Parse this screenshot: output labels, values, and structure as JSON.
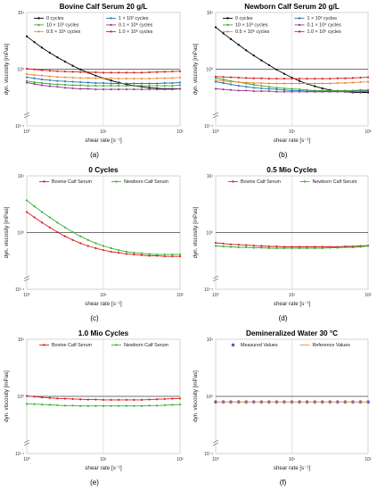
{
  "chart_data": [
    {
      "type": "line",
      "title": "Bovine Calf Serum 20 g/L",
      "xlabel": "shear rate [s⁻¹]",
      "ylabel": "dyn. viscosity [mPas]",
      "xscale": "log",
      "yscale": "log",
      "xlim": [
        1,
        100
      ],
      "ylim": [
        0.1,
        10
      ],
      "x_ticks": [
        "10⁰",
        "10¹",
        "10²"
      ],
      "y_ticks": [
        "10⁻¹",
        "10⁰",
        "10¹"
      ],
      "grid": true,
      "legend_position": "top",
      "panel_label": "(a)",
      "x": [
        1,
        1.26,
        1.58,
        2,
        2.51,
        3.16,
        3.98,
        5.01,
        6.31,
        7.94,
        10,
        12.6,
        15.8,
        20,
        25.1,
        31.6,
        39.8,
        50.1,
        63.1,
        79.4,
        100
      ],
      "series": [
        {
          "name": "0  cycles",
          "color": "#000000",
          "values": [
            3.8,
            3.0,
            2.4,
            1.95,
            1.62,
            1.36,
            1.15,
            0.99,
            0.87,
            0.77,
            0.69,
            0.63,
            0.58,
            0.54,
            0.51,
            0.49,
            0.47,
            0.46,
            0.45,
            0.45,
            0.45
          ]
        },
        {
          "name": "1 × 10²  cycles",
          "color": "#2e75b6",
          "values": [
            0.72,
            0.69,
            0.66,
            0.64,
            0.62,
            0.61,
            0.6,
            0.59,
            0.58,
            0.57,
            0.57,
            0.56,
            0.56,
            0.56,
            0.56,
            0.56,
            0.56,
            0.56,
            0.57,
            0.57,
            0.58
          ]
        },
        {
          "name": "10 × 10³  cycles",
          "color": "#3db035",
          "values": [
            0.62,
            0.59,
            0.57,
            0.55,
            0.54,
            0.53,
            0.52,
            0.52,
            0.51,
            0.51,
            0.51,
            0.51,
            0.51,
            0.51,
            0.51,
            0.51,
            0.51,
            0.51,
            0.51,
            0.51,
            0.52
          ]
        },
        {
          "name": "0.1 × 10⁶  cycles",
          "color": "#9b3a8e",
          "values": [
            0.58,
            0.55,
            0.52,
            0.5,
            0.49,
            0.47,
            0.46,
            0.45,
            0.45,
            0.44,
            0.44,
            0.44,
            0.44,
            0.44,
            0.44,
            0.44,
            0.44,
            0.44,
            0.44,
            0.44,
            0.45
          ]
        },
        {
          "name": "0.5 × 10⁶  cycles",
          "color": "#f08b3a",
          "values": [
            0.82,
            0.79,
            0.77,
            0.75,
            0.73,
            0.72,
            0.71,
            0.7,
            0.7,
            0.69,
            0.69,
            0.69,
            0.68,
            0.68,
            0.68,
            0.68,
            0.68,
            0.69,
            0.69,
            0.7,
            0.71
          ]
        },
        {
          "name": "1.0 × 10⁶  cycles",
          "color": "#d62020",
          "values": [
            1.02,
            0.99,
            0.96,
            0.94,
            0.92,
            0.91,
            0.9,
            0.89,
            0.88,
            0.88,
            0.87,
            0.87,
            0.87,
            0.87,
            0.87,
            0.87,
            0.88,
            0.89,
            0.9,
            0.91,
            0.92
          ]
        }
      ]
    },
    {
      "type": "line",
      "title": "Newborn Calf Serum 20 g/L",
      "xlabel": "shear rate [s⁻¹]",
      "ylabel": "dyn. viscosity [mPas]",
      "xscale": "log",
      "yscale": "log",
      "xlim": [
        1,
        100
      ],
      "ylim": [
        0.1,
        10
      ],
      "x_ticks": [
        "10⁰",
        "10¹",
        "10²"
      ],
      "y_ticks": [
        "10⁻¹",
        "10⁰",
        "10¹"
      ],
      "grid": true,
      "legend_position": "top",
      "panel_label": "(b)",
      "x": [
        1,
        1.26,
        1.58,
        2,
        2.51,
        3.16,
        3.98,
        5.01,
        6.31,
        7.94,
        10,
        12.6,
        15.8,
        20,
        25.1,
        31.6,
        39.8,
        50.1,
        63.1,
        79.4,
        100
      ],
      "series": [
        {
          "name": "0  cycles",
          "color": "#000000",
          "values": [
            5.5,
            4.3,
            3.4,
            2.7,
            2.15,
            1.75,
            1.43,
            1.18,
            0.98,
            0.83,
            0.71,
            0.62,
            0.55,
            0.5,
            0.46,
            0.43,
            0.41,
            0.4,
            0.39,
            0.39,
            0.39
          ]
        },
        {
          "name": "1 × 10²  cycles",
          "color": "#2e75b6",
          "values": [
            0.6,
            0.57,
            0.54,
            0.51,
            0.49,
            0.47,
            0.46,
            0.45,
            0.44,
            0.43,
            0.42,
            0.42,
            0.41,
            0.41,
            0.41,
            0.41,
            0.41,
            0.41,
            0.41,
            0.42,
            0.42
          ]
        },
        {
          "name": "10 × 10³  cycles",
          "color": "#3db035",
          "values": [
            0.7,
            0.66,
            0.62,
            0.59,
            0.56,
            0.53,
            0.51,
            0.49,
            0.47,
            0.46,
            0.45,
            0.44,
            0.43,
            0.42,
            0.42,
            0.42,
            0.42,
            0.42,
            0.42,
            0.43,
            0.43
          ]
        },
        {
          "name": "0.1 × 10⁶  cycles",
          "color": "#9b3a8e",
          "values": [
            0.45,
            0.44,
            0.43,
            0.42,
            0.42,
            0.41,
            0.41,
            0.41,
            0.4,
            0.4,
            0.4,
            0.4,
            0.4,
            0.4,
            0.4,
            0.4,
            0.4,
            0.4,
            0.4,
            0.4,
            0.41
          ]
        },
        {
          "name": "0.5 × 10⁶  cycles",
          "color": "#f08b3a",
          "values": [
            0.64,
            0.62,
            0.6,
            0.59,
            0.58,
            0.57,
            0.57,
            0.56,
            0.56,
            0.56,
            0.56,
            0.56,
            0.56,
            0.56,
            0.56,
            0.56,
            0.57,
            0.57,
            0.58,
            0.59,
            0.6
          ]
        },
        {
          "name": "1.0 × 10⁶  cycles",
          "color": "#d62020",
          "values": [
            0.74,
            0.73,
            0.72,
            0.71,
            0.7,
            0.69,
            0.69,
            0.68,
            0.68,
            0.68,
            0.68,
            0.68,
            0.68,
            0.68,
            0.68,
            0.68,
            0.69,
            0.69,
            0.7,
            0.71,
            0.72
          ]
        }
      ]
    },
    {
      "type": "line",
      "title": "0 Cycles",
      "xlabel": "shear rate [s⁻¹]",
      "ylabel": "dyn. viscosity [mPas]",
      "xscale": "log",
      "yscale": "log",
      "xlim": [
        1,
        100
      ],
      "ylim": [
        0.1,
        10
      ],
      "x_ticks": [
        "10⁰",
        "10¹",
        "10²"
      ],
      "y_ticks": [
        "10⁻¹",
        "10⁰",
        "10¹"
      ],
      "grid": true,
      "legend_position": "top",
      "panel_label": "(c)",
      "x": [
        1,
        1.26,
        1.58,
        2,
        2.51,
        3.16,
        3.98,
        5.01,
        6.31,
        7.94,
        10,
        12.6,
        15.8,
        20,
        25.1,
        31.6,
        39.8,
        50.1,
        63.1,
        79.4,
        100
      ],
      "series": [
        {
          "name": "Bovine Calf Serum",
          "color": "#d62020",
          "values": [
            2.3,
            1.85,
            1.5,
            1.23,
            1.02,
            0.86,
            0.74,
            0.65,
            0.58,
            0.53,
            0.49,
            0.46,
            0.44,
            0.42,
            0.41,
            0.4,
            0.39,
            0.39,
            0.38,
            0.38,
            0.38
          ]
        },
        {
          "name": "Newborn Calf Serum",
          "color": "#3db035",
          "values": [
            3.7,
            2.9,
            2.3,
            1.85,
            1.5,
            1.23,
            1.02,
            0.86,
            0.74,
            0.65,
            0.58,
            0.53,
            0.49,
            0.46,
            0.44,
            0.43,
            0.42,
            0.41,
            0.41,
            0.41,
            0.41
          ]
        }
      ]
    },
    {
      "type": "line",
      "title": "0.5 Mio Cycles",
      "xlabel": "shear rate [s⁻¹]",
      "ylabel": "dyn. viscosity [mPas]",
      "xscale": "log",
      "yscale": "log",
      "xlim": [
        1,
        100
      ],
      "ylim": [
        0.1,
        10
      ],
      "x_ticks": [
        "10⁰",
        "10¹",
        "10²"
      ],
      "y_ticks": [
        "10⁻¹",
        "10⁰",
        "10¹"
      ],
      "grid": true,
      "legend_position": "top",
      "panel_label": "(d)",
      "x": [
        1,
        1.26,
        1.58,
        2,
        2.51,
        3.16,
        3.98,
        5.01,
        6.31,
        7.94,
        10,
        12.6,
        15.8,
        20,
        25.1,
        31.6,
        39.8,
        50.1,
        63.1,
        79.4,
        100
      ],
      "series": [
        {
          "name": "Bovine Calf Serum",
          "color": "#d62020",
          "values": [
            0.66,
            0.64,
            0.62,
            0.61,
            0.6,
            0.59,
            0.58,
            0.57,
            0.57,
            0.56,
            0.56,
            0.56,
            0.56,
            0.56,
            0.56,
            0.56,
            0.56,
            0.57,
            0.57,
            0.58,
            0.59
          ]
        },
        {
          "name": "Newborn Calf Serum",
          "color": "#3db035",
          "values": [
            0.58,
            0.57,
            0.56,
            0.55,
            0.55,
            0.54,
            0.54,
            0.53,
            0.53,
            0.53,
            0.53,
            0.53,
            0.53,
            0.53,
            0.53,
            0.54,
            0.54,
            0.55,
            0.55,
            0.56,
            0.58
          ]
        }
      ]
    },
    {
      "type": "line",
      "title": "1.0 Mio Cycles",
      "xlabel": "shear rate [s⁻¹]",
      "ylabel": "dyn. viscosity [mPas]",
      "xscale": "log",
      "yscale": "log",
      "xlim": [
        1,
        100
      ],
      "ylim": [
        0.1,
        10
      ],
      "x_ticks": [
        "10⁰",
        "10¹",
        "10²"
      ],
      "y_ticks": [
        "10⁻¹",
        "10⁰",
        "10¹"
      ],
      "grid": true,
      "legend_position": "top",
      "panel_label": "(e)",
      "x": [
        1,
        1.26,
        1.58,
        2,
        2.51,
        3.16,
        3.98,
        5.01,
        6.31,
        7.94,
        10,
        12.6,
        15.8,
        20,
        25.1,
        31.6,
        39.8,
        50.1,
        63.1,
        79.4,
        100
      ],
      "series": [
        {
          "name": "Bovine Calf Serum",
          "color": "#d62020",
          "values": [
            1.02,
            0.99,
            0.96,
            0.94,
            0.92,
            0.91,
            0.9,
            0.89,
            0.88,
            0.88,
            0.87,
            0.87,
            0.87,
            0.87,
            0.87,
            0.87,
            0.88,
            0.89,
            0.9,
            0.91,
            0.92
          ]
        },
        {
          "name": "Newborn Calf Serum",
          "color": "#3db035",
          "values": [
            0.74,
            0.73,
            0.72,
            0.71,
            0.7,
            0.69,
            0.69,
            0.68,
            0.68,
            0.68,
            0.68,
            0.68,
            0.68,
            0.68,
            0.68,
            0.68,
            0.69,
            0.69,
            0.7,
            0.71,
            0.72
          ]
        }
      ]
    },
    {
      "type": "scatter",
      "title": "Demineralized Water 30 °C",
      "xlabel": "shear rate [s⁻¹]",
      "ylabel": "dyn. viscosity [mPas]",
      "xscale": "log",
      "yscale": "log",
      "xlim": [
        1,
        100
      ],
      "ylim": [
        0.1,
        10
      ],
      "x_ticks": [
        "10⁰",
        "10¹",
        "10²"
      ],
      "y_ticks": [
        "10⁻¹",
        "10⁰",
        "10¹"
      ],
      "grid": true,
      "legend_position": "top",
      "panel_label": "(f)",
      "x": [
        1,
        1.26,
        1.58,
        2,
        2.51,
        3.16,
        3.98,
        5.01,
        6.31,
        7.94,
        10,
        12.6,
        15.8,
        20,
        25.1,
        31.6,
        39.8,
        50.1,
        63.1,
        79.4,
        100
      ],
      "series": [
        {
          "name": "Measured Values",
          "color": "#4a5fd0",
          "marker": "dot",
          "values": [
            0.8,
            0.8,
            0.8,
            0.8,
            0.8,
            0.8,
            0.8,
            0.8,
            0.8,
            0.8,
            0.8,
            0.8,
            0.8,
            0.8,
            0.8,
            0.8,
            0.8,
            0.8,
            0.8,
            0.8,
            0.8
          ]
        },
        {
          "name": "Reference Values",
          "color": "#f08b3a",
          "marker": "line",
          "values": [
            0.8,
            0.8,
            0.8,
            0.8,
            0.8,
            0.8,
            0.8,
            0.8,
            0.8,
            0.8,
            0.8,
            0.8,
            0.8,
            0.8,
            0.8,
            0.8,
            0.8,
            0.8,
            0.8,
            0.8,
            0.8
          ]
        }
      ]
    }
  ]
}
